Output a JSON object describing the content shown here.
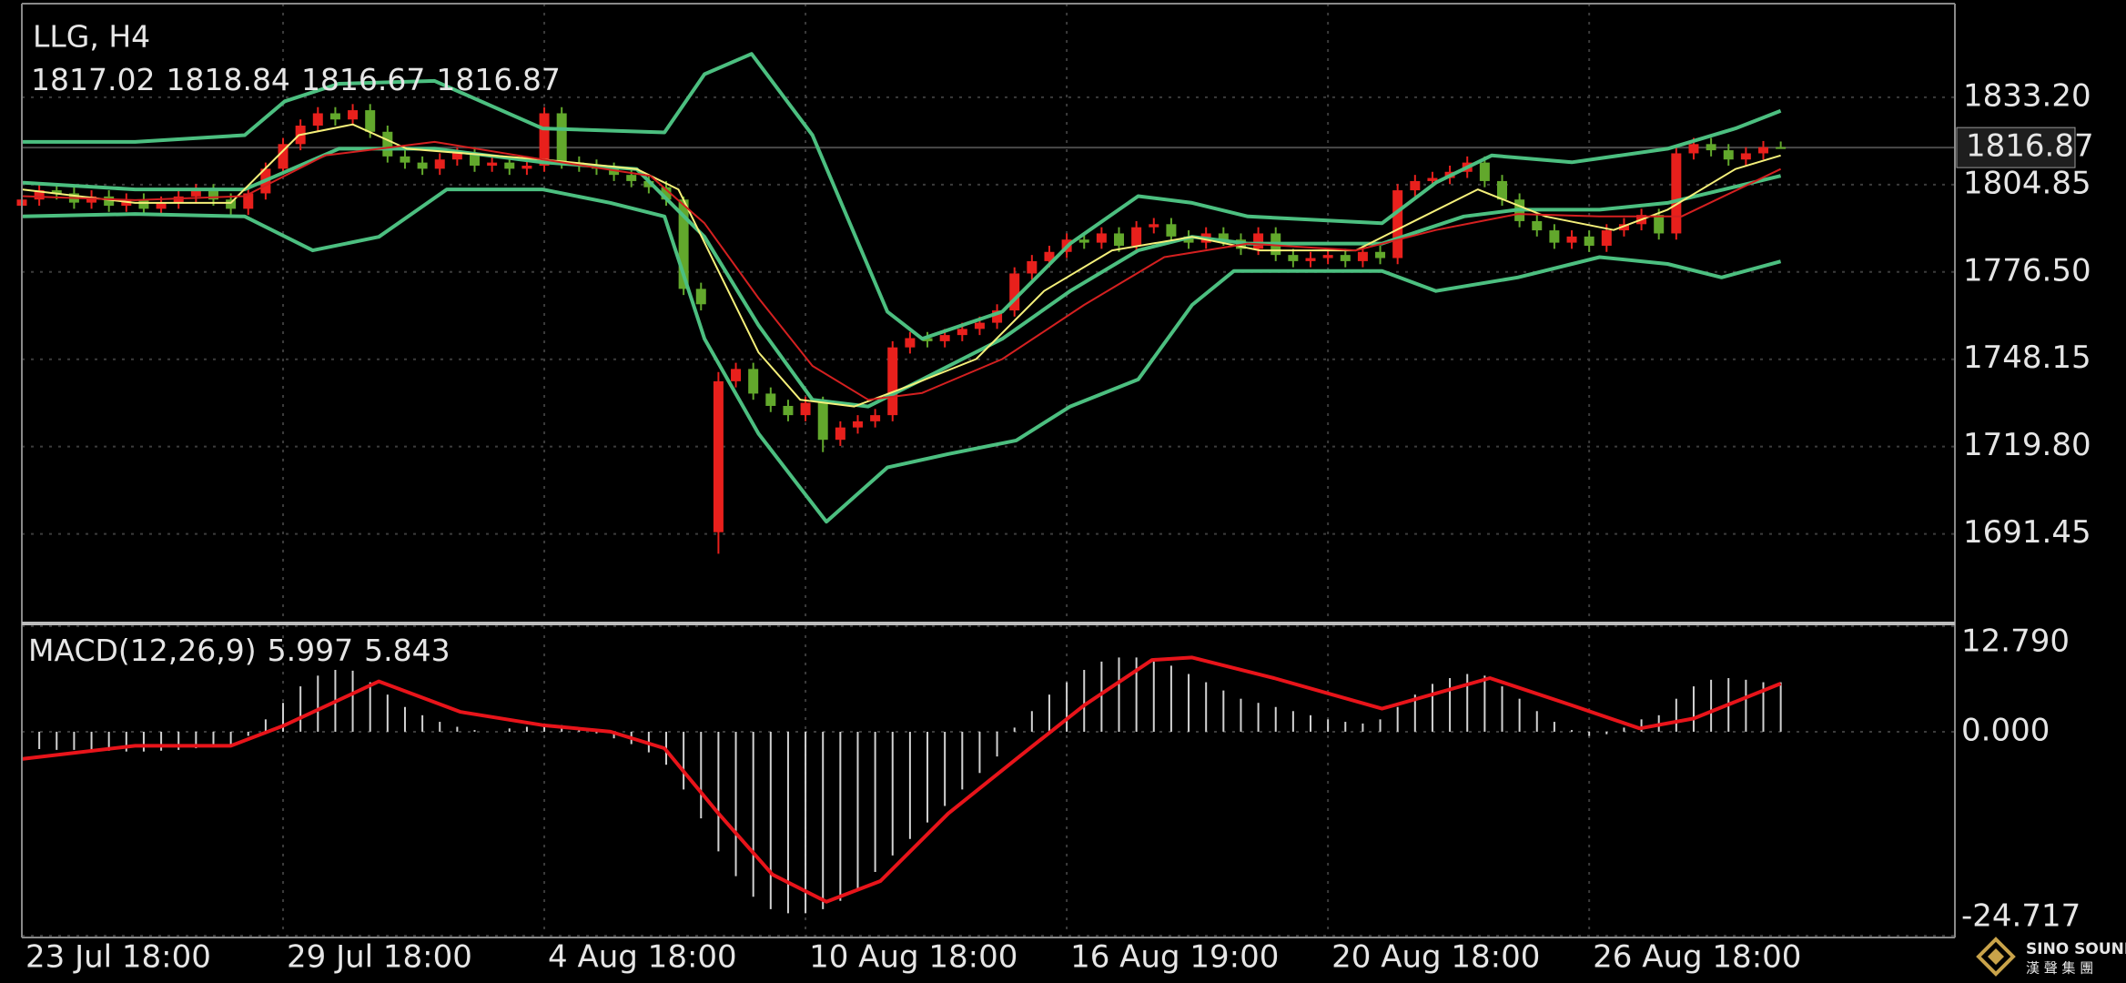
{
  "chart_data": {
    "type": "candlestick",
    "title": "LLG, H4",
    "xlim": [
      0,
      111
    ],
    "xticks": [
      {
        "value": 0,
        "label": "23 Jul 18:00"
      },
      {
        "value": 15,
        "label": "29 Jul 18:00"
      },
      {
        "value": 30,
        "label": "4 Aug 18:00"
      },
      {
        "value": 45,
        "label": "10 Aug 18:00"
      },
      {
        "value": 60,
        "label": "16 Aug 19:00"
      },
      {
        "value": 75,
        "label": "20 Aug 18:00"
      },
      {
        "value": 90,
        "label": "26 Aug 18:00"
      }
    ],
    "ylim": [
      1663.25,
      1863.6
    ],
    "yticks": [
      {
        "value": 1833.2,
        "label": "1833.20"
      },
      1804.85,
      {
        "value": 1776.5,
        "label": "1776.50"
      },
      1748.15,
      {
        "value": 1719.8,
        "label": "1719.80"
      },
      1691.45
    ],
    "grid": true,
    "up_color": "#e8201c",
    "down_color": "#62a82c",
    "open": [
      1798,
      1800,
      1803,
      1802,
      1799,
      1801,
      1798,
      1800,
      1797,
      1799,
      1801,
      1803,
      1800,
      1797,
      1802,
      1810,
      1818,
      1824,
      1828,
      1826,
      1829,
      1822,
      1814,
      1812,
      1810,
      1813,
      1815,
      1811,
      1812,
      1810,
      1811,
      1828,
      1812,
      1811,
      1810,
      1808,
      1806,
      1804,
      1800,
      1771,
      1692,
      1741,
      1745,
      1737,
      1733,
      1730,
      1734,
      1722,
      1726,
      1728,
      1730,
      1752,
      1755,
      1754,
      1756,
      1758,
      1760,
      1764,
      1776,
      1780,
      1783,
      1787,
      1786,
      1789,
      1785,
      1791,
      1792,
      1788,
      1786,
      1789,
      1787,
      1784,
      1789,
      1782,
      1780,
      1781,
      1782,
      1780,
      1783,
      1781,
      1803,
      1806,
      1807,
      1809,
      1812,
      1806,
      1800,
      1793,
      1790,
      1786,
      1788,
      1785,
      1790,
      1792,
      1795,
      1789,
      1815,
      1818,
      1816,
      1813,
      1815,
      1817.02
    ],
    "high": [
      1802,
      1805,
      1805,
      1804,
      1803,
      1803,
      1802,
      1802,
      1801,
      1803,
      1805,
      1805,
      1802,
      1804,
      1812,
      1820,
      1826,
      1830,
      1830,
      1831,
      1831,
      1824,
      1816,
      1814,
      1815,
      1817,
      1817,
      1814,
      1814,
      1813,
      1830,
      1830,
      1814,
      1813,
      1812,
      1810,
      1808,
      1806,
      1801,
      1773,
      1744,
      1747,
      1747,
      1739,
      1735,
      1736,
      1736,
      1728,
      1730,
      1732,
      1754,
      1757,
      1757,
      1758,
      1760,
      1762,
      1766,
      1778,
      1782,
      1785,
      1789,
      1789,
      1791,
      1791,
      1793,
      1794,
      1794,
      1790,
      1791,
      1791,
      1789,
      1791,
      1791,
      1784,
      1783,
      1784,
      1784,
      1785,
      1785,
      1805,
      1808,
      1809,
      1811,
      1814,
      1814,
      1808,
      1802,
      1795,
      1792,
      1790,
      1790,
      1792,
      1794,
      1797,
      1797,
      1817,
      1820,
      1820,
      1818,
      1817,
      1819,
      1818.84
    ],
    "low": [
      1796,
      1798,
      1800,
      1797,
      1797,
      1796,
      1796,
      1795,
      1795,
      1797,
      1799,
      1798,
      1795,
      1795,
      1800,
      1808,
      1816,
      1822,
      1824,
      1824,
      1820,
      1812,
      1810,
      1808,
      1808,
      1811,
      1809,
      1809,
      1808,
      1808,
      1809,
      1810,
      1809,
      1808,
      1806,
      1804,
      1802,
      1798,
      1769,
      1764,
      1685,
      1739,
      1735,
      1731,
      1728,
      1728,
      1718,
      1720,
      1724,
      1726,
      1728,
      1750,
      1752,
      1752,
      1754,
      1756,
      1758,
      1762,
      1774,
      1778,
      1781,
      1784,
      1784,
      1783,
      1783,
      1789,
      1786,
      1784,
      1784,
      1785,
      1782,
      1782,
      1780,
      1778,
      1778,
      1779,
      1778,
      1778,
      1779,
      1779,
      1801,
      1804,
      1805,
      1807,
      1804,
      1798,
      1791,
      1788,
      1784,
      1784,
      1783,
      1783,
      1788,
      1790,
      1787,
      1787,
      1813,
      1814,
      1811,
      1811,
      1813,
      1816.67
    ],
    "close": [
      1800,
      1803,
      1802,
      1799,
      1801,
      1798,
      1800,
      1797,
      1799,
      1801,
      1803,
      1800,
      1797,
      1802,
      1810,
      1818,
      1824,
      1828,
      1826,
      1829,
      1822,
      1814,
      1812,
      1810,
      1813,
      1815,
      1811,
      1812,
      1810,
      1811,
      1828,
      1812,
      1811,
      1810,
      1808,
      1806,
      1804,
      1800,
      1771,
      1766,
      1741,
      1745,
      1737,
      1733,
      1730,
      1734,
      1722,
      1726,
      1728,
      1730,
      1752,
      1755,
      1754,
      1756,
      1758,
      1760,
      1764,
      1776,
      1780,
      1783,
      1787,
      1786,
      1789,
      1785,
      1791,
      1792,
      1788,
      1786,
      1789,
      1787,
      1784,
      1789,
      1782,
      1780,
      1781,
      1782,
      1780,
      1783,
      1781,
      1803,
      1806,
      1807,
      1809,
      1812,
      1806,
      1800,
      1793,
      1790,
      1786,
      1788,
      1785,
      1790,
      1792,
      1795,
      1789,
      1815,
      1818,
      1816,
      1813,
      1815,
      1817,
      1816.87
    ],
    "series": [
      {
        "color": "#4cbf80",
        "x": [
          0,
          6.5,
          12.8,
          15.1,
          18.2,
          23.7,
          29.9,
          36.9,
          39.2,
          41.9,
          45.4,
          49.7,
          51.7,
          56.3,
          60.2,
          64.1,
          67.2,
          70.4,
          78.1,
          81.2,
          84.4,
          89,
          94.5,
          98.4,
          101
        ],
        "values": [
          1818.7,
          1818.7,
          1820.9,
          1831.9,
          1837.6,
          1838.5,
          1823.1,
          1821.8,
          1840.7,
          1847.3,
          1820.9,
          1763.6,
          1754.8,
          1763.6,
          1785.7,
          1801.1,
          1798.9,
          1794.5,
          1792.3,
          1805.5,
          1814.3,
          1812.1,
          1816.5,
          1823.1,
          1828.8
        ]
      },
      {
        "color": "#4cbf80",
        "x": [
          0,
          6.5,
          12.8,
          18.2,
          23.7,
          29.9,
          35.3,
          39.2,
          42.3,
          45.4,
          48.6,
          51.7,
          56.3,
          60.2,
          64.1,
          67.2,
          70.4,
          78.1,
          82.8,
          85.9,
          90.6,
          94.5,
          101
        ],
        "values": [
          1805.5,
          1803.3,
          1803.3,
          1816.5,
          1816.5,
          1812.1,
          1809.9,
          1787.9,
          1759.2,
          1735.0,
          1732.8,
          1741.6,
          1754.8,
          1770.3,
          1783.5,
          1787.9,
          1785.7,
          1785.7,
          1794.5,
          1796.7,
          1796.7,
          1798.9,
          1807.7
        ]
      },
      {
        "color": "#4cbf80",
        "x": [
          0,
          6.5,
          12.8,
          16.7,
          20.5,
          24.4,
          29.9,
          33.8,
          36.9,
          39.2,
          42.3,
          46.2,
          49.7,
          53.2,
          57.1,
          60.2,
          64.1,
          67.2,
          69.6,
          78.1,
          81.2,
          85.9,
          90.6,
          94.5,
          97.6,
          101
        ],
        "values": [
          1794.5,
          1795.3,
          1794.5,
          1783.5,
          1787.9,
          1803.3,
          1803.3,
          1798.9,
          1794.5,
          1754.8,
          1724.0,
          1695.4,
          1713.0,
          1717.4,
          1721.8,
          1732.8,
          1741.6,
          1765.8,
          1776.8,
          1776.8,
          1770.3,
          1774.7,
          1781.3,
          1779.1,
          1774.7,
          1779.9
        ]
      },
      {
        "color": "#f5f07a",
        "x": [
          0,
          6.5,
          12,
          15.9,
          19,
          22.1,
          29.9,
          35.3,
          37.7,
          40,
          42.3,
          44.7,
          47.8,
          50.9,
          54.8,
          58.7,
          62.6,
          67.2,
          71.1,
          76.6,
          79.7,
          83.6,
          87.5,
          91.4,
          94.5,
          98.4,
          101
        ],
        "values": [
          1803.3,
          1798.9,
          1798.9,
          1820.9,
          1824.4,
          1816.5,
          1813.0,
          1809.9,
          1803.3,
          1776.8,
          1750.4,
          1735.0,
          1732.8,
          1739.4,
          1748.2,
          1770.3,
          1783.5,
          1787.9,
          1783.5,
          1783.5,
          1792.3,
          1803.3,
          1794.5,
          1790.1,
          1796.7,
          1809.9,
          1814.3
        ]
      },
      {
        "color": "#d42020",
        "x": [
          0,
          6.5,
          12.8,
          17.4,
          23.7,
          29.9,
          36.1,
          39.2,
          42.3,
          45.4,
          48.6,
          51.7,
          56.3,
          61,
          65.6,
          70.4,
          76.6,
          81.2,
          85.9,
          90.6,
          95.3,
          101
        ],
        "values": [
          1801.1,
          1799.8,
          1801.1,
          1814.3,
          1818.7,
          1813.0,
          1807.7,
          1792.3,
          1768.0,
          1746.0,
          1735.0,
          1737.2,
          1748.2,
          1765.8,
          1781.3,
          1785.7,
          1783.5,
          1790.1,
          1795.3,
          1794.5,
          1794.5,
          1809.9
        ]
      }
    ],
    "macd": {
      "label": "MACD(12,26,9)",
      "ylim": [
        -24.717,
        12.79
      ],
      "yticks": [
        {
          "value": 12.79,
          "label": "12.790"
        },
        {
          "value": 0,
          "label": "0.000"
        },
        -24.717
      ],
      "histogram": {
        "color": "#d2d2d2",
        "values": [
          -2.0,
          -2.1,
          -2.2,
          -2.2,
          -2.3,
          -2.3,
          -2.4,
          -2.4,
          -2.3,
          -2.2,
          -2.0,
          -1.8,
          -1.5,
          -0.5,
          1.5,
          3.5,
          5.5,
          6.8,
          7.5,
          7.4,
          6.0,
          4.5,
          3.0,
          2.0,
          1.2,
          0.6,
          0.2,
          0.0,
          0.4,
          0.6,
          1.0,
          0.8,
          0.3,
          -0.2,
          -0.8,
          -1.5,
          -2.5,
          -4.0,
          -7.0,
          -10.5,
          -14.5,
          -17.5,
          -20.0,
          -21.5,
          -22.0,
          -22.0,
          -21.5,
          -20.5,
          -19.0,
          -17.0,
          -15.0,
          -13.0,
          -11.0,
          -9.0,
          -7.0,
          -5.0,
          -3.0,
          0.5,
          2.5,
          4.5,
          6.0,
          7.5,
          8.5,
          9.0,
          9.0,
          8.5,
          8.0,
          7.0,
          6.0,
          5.0,
          4.0,
          3.5,
          3.0,
          2.5,
          2.0,
          1.5,
          1.2,
          1.0,
          1.5,
          3.0,
          4.5,
          5.8,
          6.5,
          7.0,
          6.8,
          5.5,
          4.0,
          2.5,
          1.2,
          0.2,
          -0.5,
          -0.3,
          0.5,
          1.5,
          2.0,
          4.0,
          5.5,
          6.3,
          6.5,
          6.3,
          6.0,
          5.997
        ]
      },
      "signal": {
        "color": "#e8141a",
        "x": [
          0,
          6.5,
          12,
          15.1,
          20.5,
          25.2,
          29.9,
          33.8,
          36.9,
          40,
          43.1,
          46.2,
          49.3,
          53.2,
          57.1,
          61,
          64.9,
          67.2,
          71.9,
          78.1,
          84.3,
          89,
          92.9,
          96,
          101
        ],
        "values": [
          -3.3,
          -1.7,
          -1.7,
          0.8,
          6.1,
          2.4,
          0.8,
          0,
          -2.0,
          -9.9,
          -17.3,
          -20.6,
          -18.1,
          -9.9,
          -3.3,
          3.2,
          8.7,
          9.0,
          6.5,
          2.8,
          6.5,
          3.2,
          0.4,
          1.6,
          5.843
        ]
      }
    }
  },
  "watermark": {
    "brand": "SINO SOUND",
    "subtitle": "漢 聲 集 團"
  }
}
